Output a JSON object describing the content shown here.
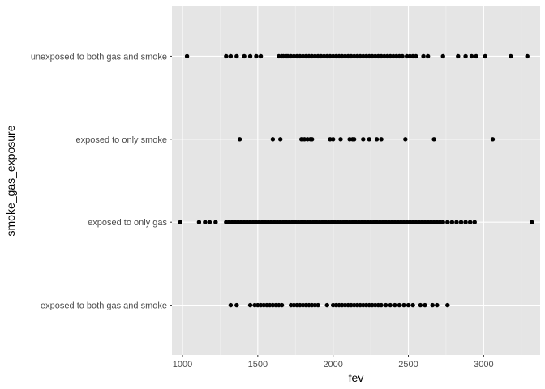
{
  "chart_data": {
    "type": "scatter",
    "title": "",
    "xlabel": "fev",
    "ylabel": "smoke_gas_exposure",
    "xlim": [
      930,
      3375
    ],
    "x_ticks": [
      1000,
      1500,
      2000,
      2500,
      3000
    ],
    "x_tick_labels": [
      "1000",
      "1500",
      "2000",
      "2500",
      "3000"
    ],
    "categories": [
      "exposed to both gas and smoke",
      "exposed to only gas",
      "exposed to only smoke",
      "unexposed to both gas and smoke"
    ],
    "grid": true,
    "legend": "none",
    "colors": {
      "panel": "#e5e5e5",
      "grid": "#ffffff",
      "point": "#000000"
    },
    "points": [
      {
        "category": "unexposed to both gas and smoke",
        "x": [
          1030,
          1290,
          1320,
          1360,
          1410,
          1450,
          1490,
          1520,
          1640,
          1660,
          1670,
          1690,
          1700,
          1720,
          1740,
          1760,
          1780,
          1800,
          1820,
          1840,
          1860,
          1880,
          1900,
          1920,
          1940,
          1960,
          1980,
          2000,
          2020,
          2040,
          2060,
          2080,
          2100,
          2120,
          2140,
          2160,
          2180,
          2200,
          2220,
          2240,
          2260,
          2280,
          2300,
          2320,
          2340,
          2360,
          2380,
          2400,
          2420,
          2440,
          2460,
          2490,
          2510,
          2530,
          2550,
          2600,
          2630,
          2730,
          2830,
          2880,
          2920,
          2950,
          3010,
          3180,
          3290
        ]
      },
      {
        "category": "exposed to only smoke",
        "x": [
          1380,
          1600,
          1650,
          1790,
          1810,
          1830,
          1850,
          1860,
          1980,
          2000,
          2050,
          2110,
          2130,
          2140,
          2200,
          2240,
          2290,
          2320,
          2480,
          2670,
          3060
        ]
      },
      {
        "category": "exposed to only gas",
        "x": [
          985,
          1110,
          1150,
          1180,
          1220,
          1290,
          1310,
          1330,
          1350,
          1370,
          1390,
          1410,
          1430,
          1450,
          1470,
          1490,
          1510,
          1530,
          1550,
          1570,
          1590,
          1610,
          1630,
          1650,
          1670,
          1690,
          1710,
          1730,
          1750,
          1770,
          1790,
          1810,
          1830,
          1850,
          1870,
          1890,
          1910,
          1930,
          1950,
          1970,
          1990,
          2010,
          2030,
          2050,
          2070,
          2090,
          2110,
          2130,
          2150,
          2170,
          2190,
          2210,
          2230,
          2250,
          2270,
          2290,
          2310,
          2330,
          2350,
          2370,
          2390,
          2410,
          2430,
          2450,
          2470,
          2490,
          2510,
          2530,
          2550,
          2570,
          2590,
          2610,
          2630,
          2650,
          2670,
          2690,
          2710,
          2730,
          2760,
          2790,
          2820,
          2850,
          2880,
          2910,
          2940,
          3320
        ]
      },
      {
        "category": "exposed to both gas and smoke",
        "x": [
          1320,
          1360,
          1450,
          1480,
          1500,
          1520,
          1540,
          1560,
          1580,
          1600,
          1620,
          1640,
          1660,
          1720,
          1740,
          1760,
          1780,
          1800,
          1820,
          1840,
          1860,
          1880,
          1900,
          1960,
          2000,
          2020,
          2040,
          2060,
          2080,
          2100,
          2120,
          2140,
          2160,
          2180,
          2200,
          2220,
          2240,
          2260,
          2280,
          2300,
          2320,
          2350,
          2380,
          2410,
          2440,
          2470,
          2500,
          2530,
          2580,
          2610,
          2660,
          2690,
          2760
        ]
      }
    ]
  }
}
